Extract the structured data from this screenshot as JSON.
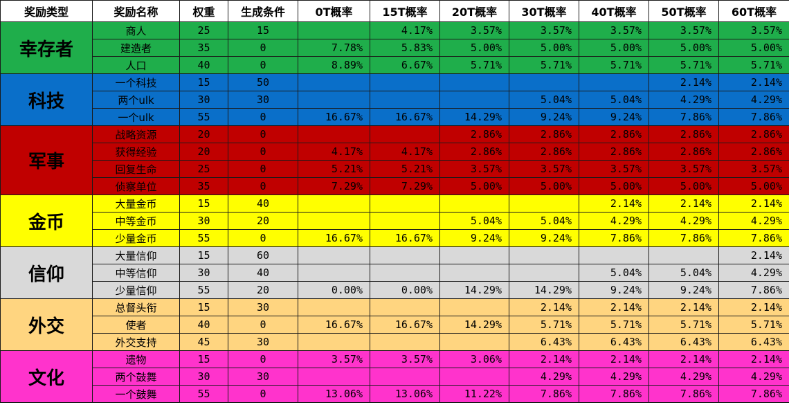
{
  "headers": [
    "奖励类型",
    "奖励名称",
    "权重",
    "生成条件",
    "0T概率",
    "15T概率",
    "20T概率",
    "30T概率",
    "40T概率",
    "50T概率",
    "60T概率"
  ],
  "groups": [
    {
      "name": "幸存者",
      "color": "#1fae4b",
      "rows": [
        {
          "name": "商人",
          "weight": "25",
          "condition": "15",
          "probs": [
            "",
            "4.17%",
            "3.57%",
            "3.57%",
            "3.57%",
            "3.57%",
            "3.57%"
          ]
        },
        {
          "name": "建造者",
          "weight": "35",
          "condition": "0",
          "probs": [
            "7.78%",
            "5.83%",
            "5.00%",
            "5.00%",
            "5.00%",
            "5.00%",
            "5.00%"
          ]
        },
        {
          "name": "人口",
          "weight": "40",
          "condition": "0",
          "probs": [
            "8.89%",
            "6.67%",
            "5.71%",
            "5.71%",
            "5.71%",
            "5.71%",
            "5.71%"
          ]
        }
      ]
    },
    {
      "name": "科技",
      "color": "#0a6fc9",
      "rows": [
        {
          "name": "一个科技",
          "weight": "15",
          "condition": "50",
          "probs": [
            "",
            "",
            "",
            "",
            "",
            "2.14%",
            "2.14%"
          ]
        },
        {
          "name": "两个ulk",
          "weight": "30",
          "condition": "30",
          "probs": [
            "",
            "",
            "",
            "5.04%",
            "5.04%",
            "4.29%",
            "4.29%"
          ]
        },
        {
          "name": "一个ulk",
          "weight": "55",
          "condition": "0",
          "probs": [
            "16.67%",
            "16.67%",
            "14.29%",
            "9.24%",
            "9.24%",
            "7.86%",
            "7.86%"
          ]
        }
      ]
    },
    {
      "name": "军事",
      "color": "#c00000",
      "rows": [
        {
          "name": "战略资源",
          "weight": "20",
          "condition": "0",
          "probs": [
            "",
            "",
            "2.86%",
            "2.86%",
            "2.86%",
            "2.86%",
            "2.86%"
          ]
        },
        {
          "name": "获得经验",
          "weight": "20",
          "condition": "0",
          "probs": [
            "4.17%",
            "4.17%",
            "2.86%",
            "2.86%",
            "2.86%",
            "2.86%",
            "2.86%"
          ]
        },
        {
          "name": "回复生命",
          "weight": "25",
          "condition": "0",
          "probs": [
            "5.21%",
            "5.21%",
            "3.57%",
            "3.57%",
            "3.57%",
            "3.57%",
            "3.57%"
          ]
        },
        {
          "name": "侦察单位",
          "weight": "35",
          "condition": "0",
          "probs": [
            "7.29%",
            "7.29%",
            "5.00%",
            "5.00%",
            "5.00%",
            "5.00%",
            "5.00%"
          ]
        }
      ]
    },
    {
      "name": "金币",
      "color": "#ffff00",
      "rows": [
        {
          "name": "大量金币",
          "weight": "15",
          "condition": "40",
          "probs": [
            "",
            "",
            "",
            "",
            "2.14%",
            "2.14%",
            "2.14%"
          ]
        },
        {
          "name": "中等金币",
          "weight": "30",
          "condition": "20",
          "probs": [
            "",
            "",
            "5.04%",
            "5.04%",
            "4.29%",
            "4.29%",
            "4.29%"
          ]
        },
        {
          "name": "少量金币",
          "weight": "55",
          "condition": "0",
          "probs": [
            "16.67%",
            "16.67%",
            "9.24%",
            "9.24%",
            "7.86%",
            "7.86%",
            "7.86%"
          ]
        }
      ]
    },
    {
      "name": "信仰",
      "color": "#d9d9d9",
      "rows": [
        {
          "name": "大量信仰",
          "weight": "15",
          "condition": "60",
          "probs": [
            "",
            "",
            "",
            "",
            "",
            "",
            "2.14%"
          ]
        },
        {
          "name": "中等信仰",
          "weight": "30",
          "condition": "40",
          "probs": [
            "",
            "",
            "",
            "",
            "5.04%",
            "5.04%",
            "4.29%"
          ]
        },
        {
          "name": "少量信仰",
          "weight": "55",
          "condition": "20",
          "probs": [
            "0.00%",
            "0.00%",
            "14.29%",
            "14.29%",
            "9.24%",
            "9.24%",
            "7.86%"
          ]
        }
      ]
    },
    {
      "name": "外交",
      "color": "#ffd580",
      "rows": [
        {
          "name": "总督头衔",
          "weight": "15",
          "condition": "30",
          "probs": [
            "",
            "",
            "",
            "2.14%",
            "2.14%",
            "2.14%",
            "2.14%"
          ]
        },
        {
          "name": "使者",
          "weight": "40",
          "condition": "0",
          "probs": [
            "16.67%",
            "16.67%",
            "14.29%",
            "5.71%",
            "5.71%",
            "5.71%",
            "5.71%"
          ]
        },
        {
          "name": "外交支持",
          "weight": "45",
          "condition": "30",
          "probs": [
            "",
            "",
            "",
            "6.43%",
            "6.43%",
            "6.43%",
            "6.43%"
          ]
        }
      ]
    },
    {
      "name": "文化",
      "color": "#ff33cc",
      "rows": [
        {
          "name": "遗物",
          "weight": "15",
          "condition": "0",
          "probs": [
            "3.57%",
            "3.57%",
            "3.06%",
            "2.14%",
            "2.14%",
            "2.14%",
            "2.14%"
          ]
        },
        {
          "name": "两个鼓舞",
          "weight": "30",
          "condition": "30",
          "probs": [
            "",
            "",
            "",
            "4.29%",
            "4.29%",
            "4.29%",
            "4.29%"
          ]
        },
        {
          "name": "一个鼓舞",
          "weight": "55",
          "condition": "0",
          "probs": [
            "13.06%",
            "13.06%",
            "11.22%",
            "7.86%",
            "7.86%",
            "7.86%",
            "7.86%"
          ]
        }
      ]
    }
  ]
}
